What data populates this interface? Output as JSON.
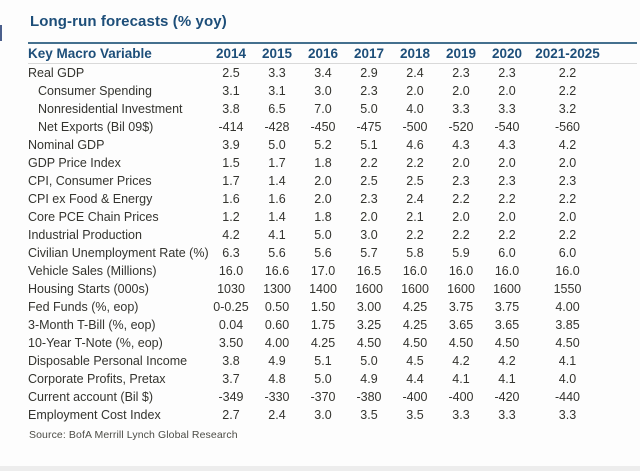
{
  "colors": {
    "title_navy": "#1d4e79",
    "rule_blue": "#44708e",
    "body_text": "#34342f",
    "header_underline": "#d9d9d9",
    "bottom_strip": "#ededed"
  },
  "chart_data": {
    "type": "table",
    "title": "Long-run forecasts (% yoy)",
    "source": "Source: BofA Merrill Lynch Global Research",
    "columns": [
      "Key Macro Variable",
      "2014",
      "2015",
      "2016",
      "2017",
      "2018",
      "2019",
      "2020",
      "2021-2025"
    ],
    "rows": [
      {
        "label": "Real GDP",
        "indent": false,
        "values": [
          "2.5",
          "3.3",
          "3.4",
          "2.9",
          "2.4",
          "2.3",
          "2.3",
          "2.2"
        ]
      },
      {
        "label": "Consumer Spending",
        "indent": true,
        "values": [
          "3.1",
          "3.1",
          "3.0",
          "2.3",
          "2.0",
          "2.0",
          "2.0",
          "2.2"
        ]
      },
      {
        "label": "Nonresidential Investment",
        "indent": true,
        "values": [
          "3.8",
          "6.5",
          "7.0",
          "5.0",
          "4.0",
          "3.3",
          "3.3",
          "3.2"
        ]
      },
      {
        "label": "Net Exports (Bil 09$)",
        "indent": true,
        "values": [
          "-414",
          "-428",
          "-450",
          "-475",
          "-500",
          "-520",
          "-540",
          "-560"
        ]
      },
      {
        "label": "Nominal GDP",
        "indent": false,
        "values": [
          "3.9",
          "5.0",
          "5.2",
          "5.1",
          "4.6",
          "4.3",
          "4.3",
          "4.2"
        ]
      },
      {
        "label": "GDP Price Index",
        "indent": false,
        "values": [
          "1.5",
          "1.7",
          "1.8",
          "2.2",
          "2.2",
          "2.0",
          "2.0",
          "2.0"
        ]
      },
      {
        "label": "CPI, Consumer Prices",
        "indent": false,
        "values": [
          "1.7",
          "1.4",
          "2.0",
          "2.5",
          "2.5",
          "2.3",
          "2.3",
          "2.3"
        ]
      },
      {
        "label": "CPI ex Food & Energy",
        "indent": false,
        "values": [
          "1.6",
          "1.6",
          "2.0",
          "2.3",
          "2.4",
          "2.2",
          "2.2",
          "2.2"
        ]
      },
      {
        "label": "Core PCE Chain Prices",
        "indent": false,
        "values": [
          "1.2",
          "1.4",
          "1.8",
          "2.0",
          "2.1",
          "2.0",
          "2.0",
          "2.0"
        ]
      },
      {
        "label": "Industrial Production",
        "indent": false,
        "values": [
          "4.2",
          "4.1",
          "5.0",
          "3.0",
          "2.2",
          "2.2",
          "2.2",
          "2.2"
        ]
      },
      {
        "label": "Civilian Unemployment Rate (%)",
        "indent": false,
        "values": [
          "6.3",
          "5.6",
          "5.6",
          "5.7",
          "5.8",
          "5.9",
          "6.0",
          "6.0"
        ]
      },
      {
        "label": "Vehicle Sales (Millions)",
        "indent": false,
        "values": [
          "16.0",
          "16.6",
          "17.0",
          "16.5",
          "16.0",
          "16.0",
          "16.0",
          "16.0"
        ]
      },
      {
        "label": "Housing Starts (000s)",
        "indent": false,
        "values": [
          "1030",
          "1300",
          "1400",
          "1600",
          "1600",
          "1600",
          "1600",
          "1550"
        ]
      },
      {
        "label": "Fed Funds (%, eop)",
        "indent": false,
        "values": [
          "0-0.25",
          "0.50",
          "1.50",
          "3.00",
          "4.25",
          "3.75",
          "3.75",
          "4.00"
        ]
      },
      {
        "label": "3-Month T-Bill (%, eop)",
        "indent": false,
        "values": [
          "0.04",
          "0.60",
          "1.75",
          "3.25",
          "4.25",
          "3.65",
          "3.65",
          "3.85"
        ]
      },
      {
        "label": "10-Year T-Note (%, eop)",
        "indent": false,
        "values": [
          "3.50",
          "4.00",
          "4.25",
          "4.50",
          "4.50",
          "4.50",
          "4.50",
          "4.50"
        ]
      },
      {
        "label": "Disposable Personal Income",
        "indent": false,
        "values": [
          "3.8",
          "4.9",
          "5.1",
          "5.0",
          "4.5",
          "4.2",
          "4.2",
          "4.1"
        ]
      },
      {
        "label": "Corporate Profits, Pretax",
        "indent": false,
        "values": [
          "3.7",
          "4.8",
          "5.0",
          "4.9",
          "4.4",
          "4.1",
          "4.1",
          "4.0"
        ]
      },
      {
        "label": "Current account (Bil $)",
        "indent": false,
        "values": [
          "-349",
          "-330",
          "-370",
          "-380",
          "-400",
          "-400",
          "-420",
          "-440"
        ]
      },
      {
        "label": "Employment Cost Index",
        "indent": false,
        "values": [
          "2.7",
          "2.4",
          "3.0",
          "3.5",
          "3.5",
          "3.3",
          "3.3",
          "3.3"
        ]
      }
    ]
  }
}
